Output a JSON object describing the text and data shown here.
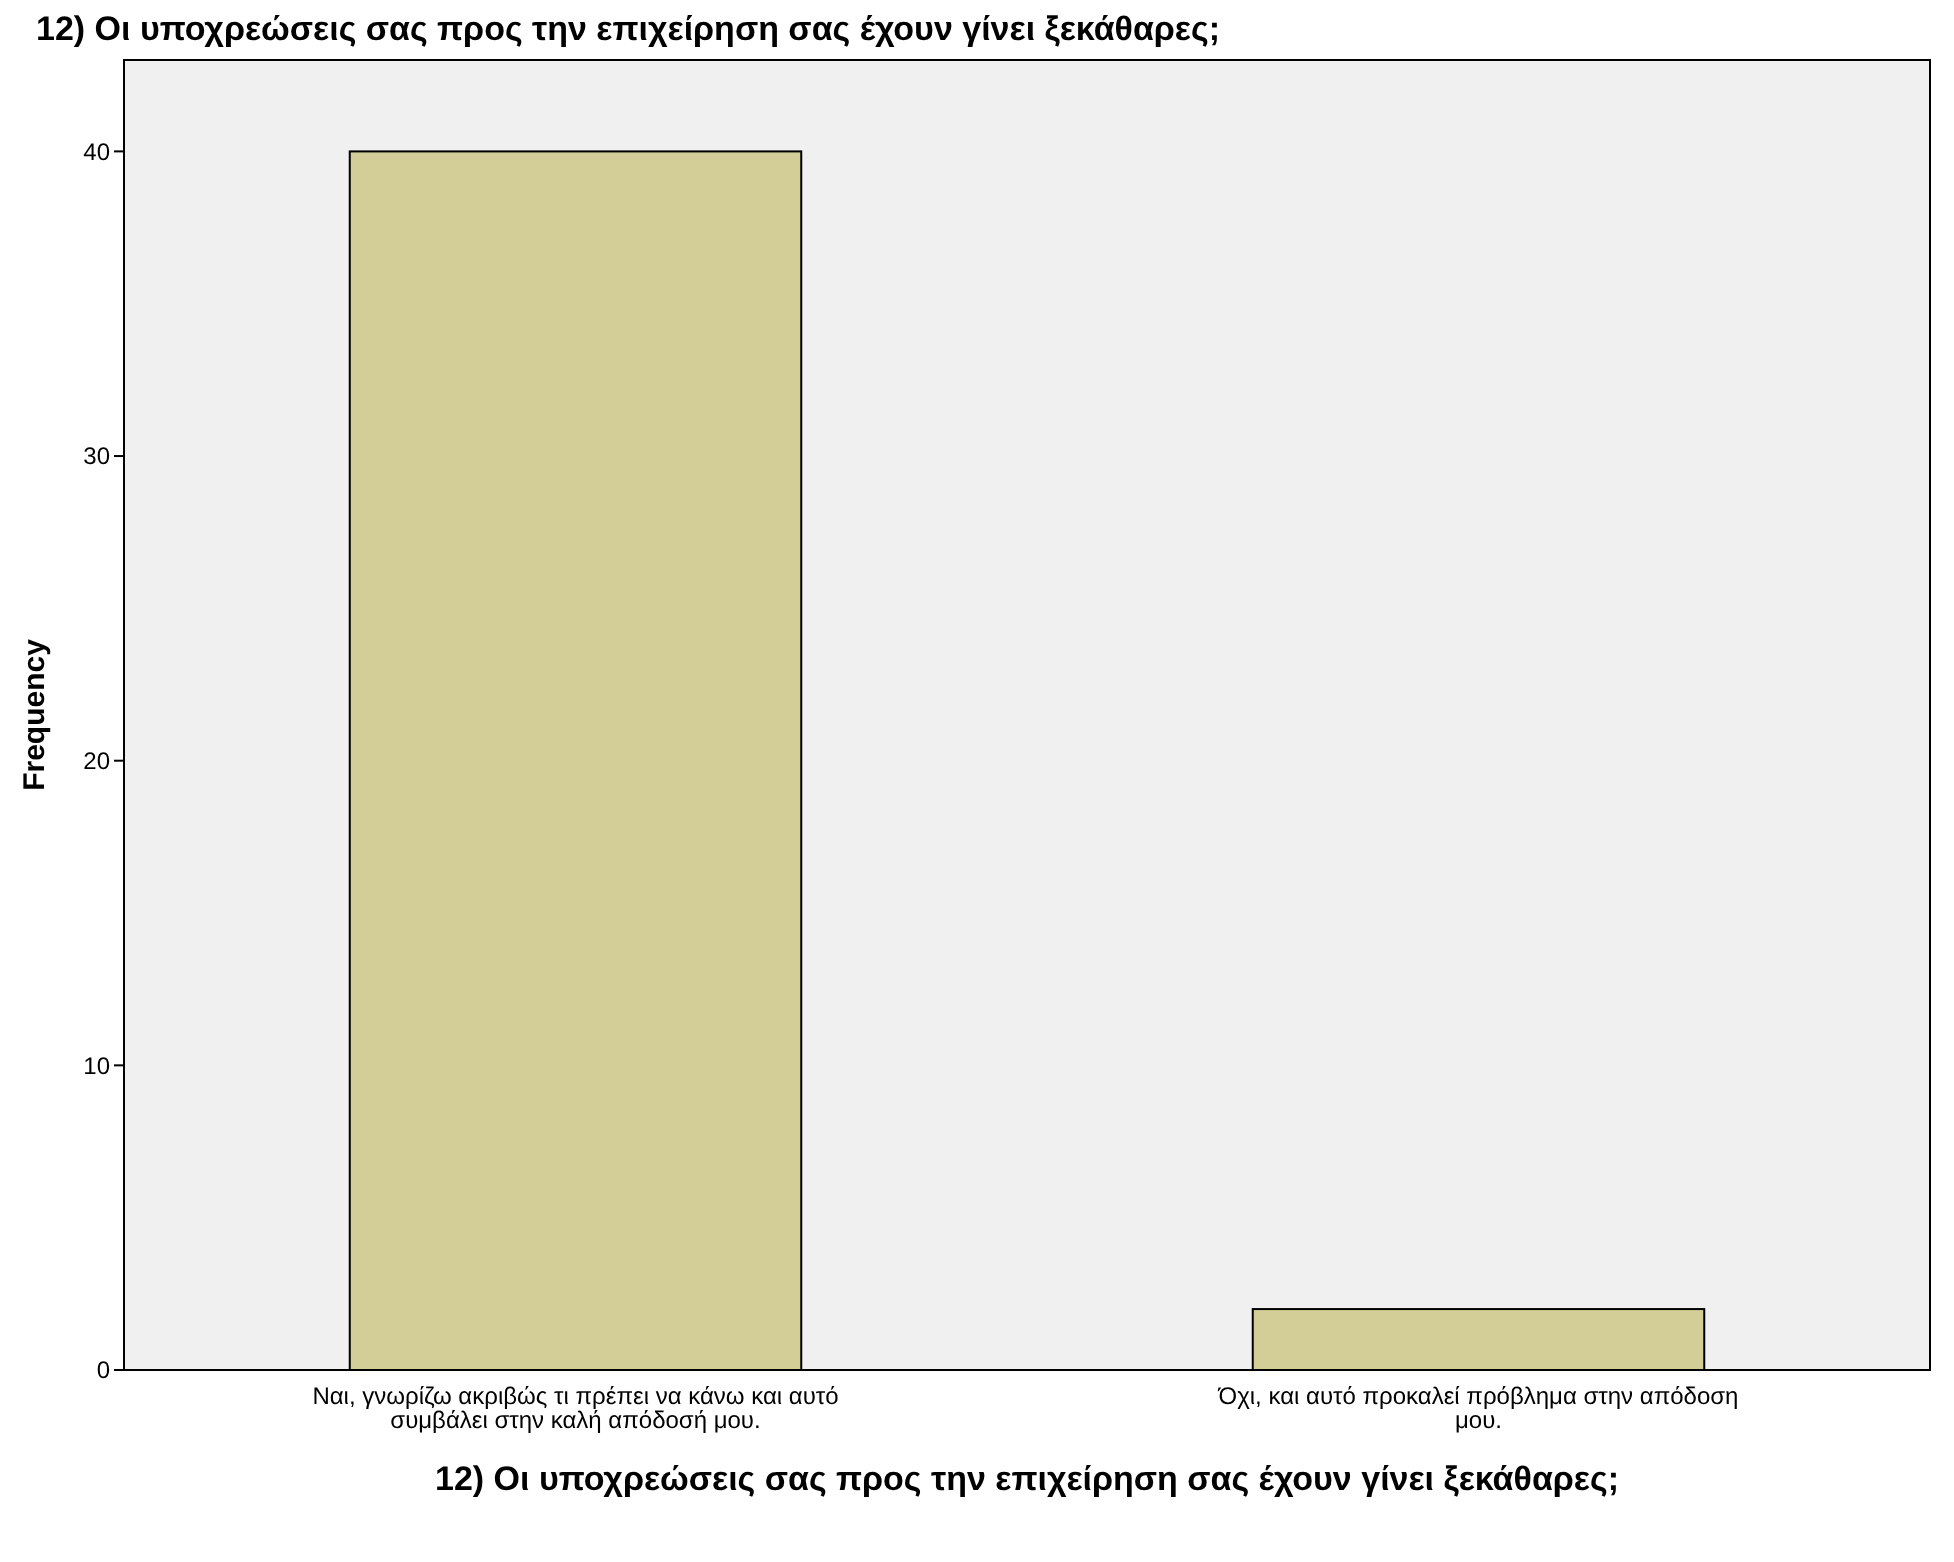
{
  "chart_data": {
    "type": "bar",
    "title": "12) Οι υποχρεώσεις σας προς την επιχείρηση σας έχουν γίνει ξεκάθαρες;",
    "xlabel": "12) Οι υποχρεώσεις σας προς την επιχείρηση σας έχουν γίνει ξεκάθαρες;",
    "ylabel": "Frequency",
    "categories": [
      "Ναι, γνωρίζω ακριβώς τι πρέπει να κάνω και αυτό συμβάλει στην καλή απόδοσή μου.",
      "Όχι, και αυτό προκαλεί πρόβλημα στην απόδοση μου."
    ],
    "values": [
      40,
      2
    ],
    "color": "#d3ce97",
    "ylim": [
      0,
      43
    ],
    "yticks": [
      0,
      10,
      20,
      30,
      40
    ],
    "grid": false
  }
}
